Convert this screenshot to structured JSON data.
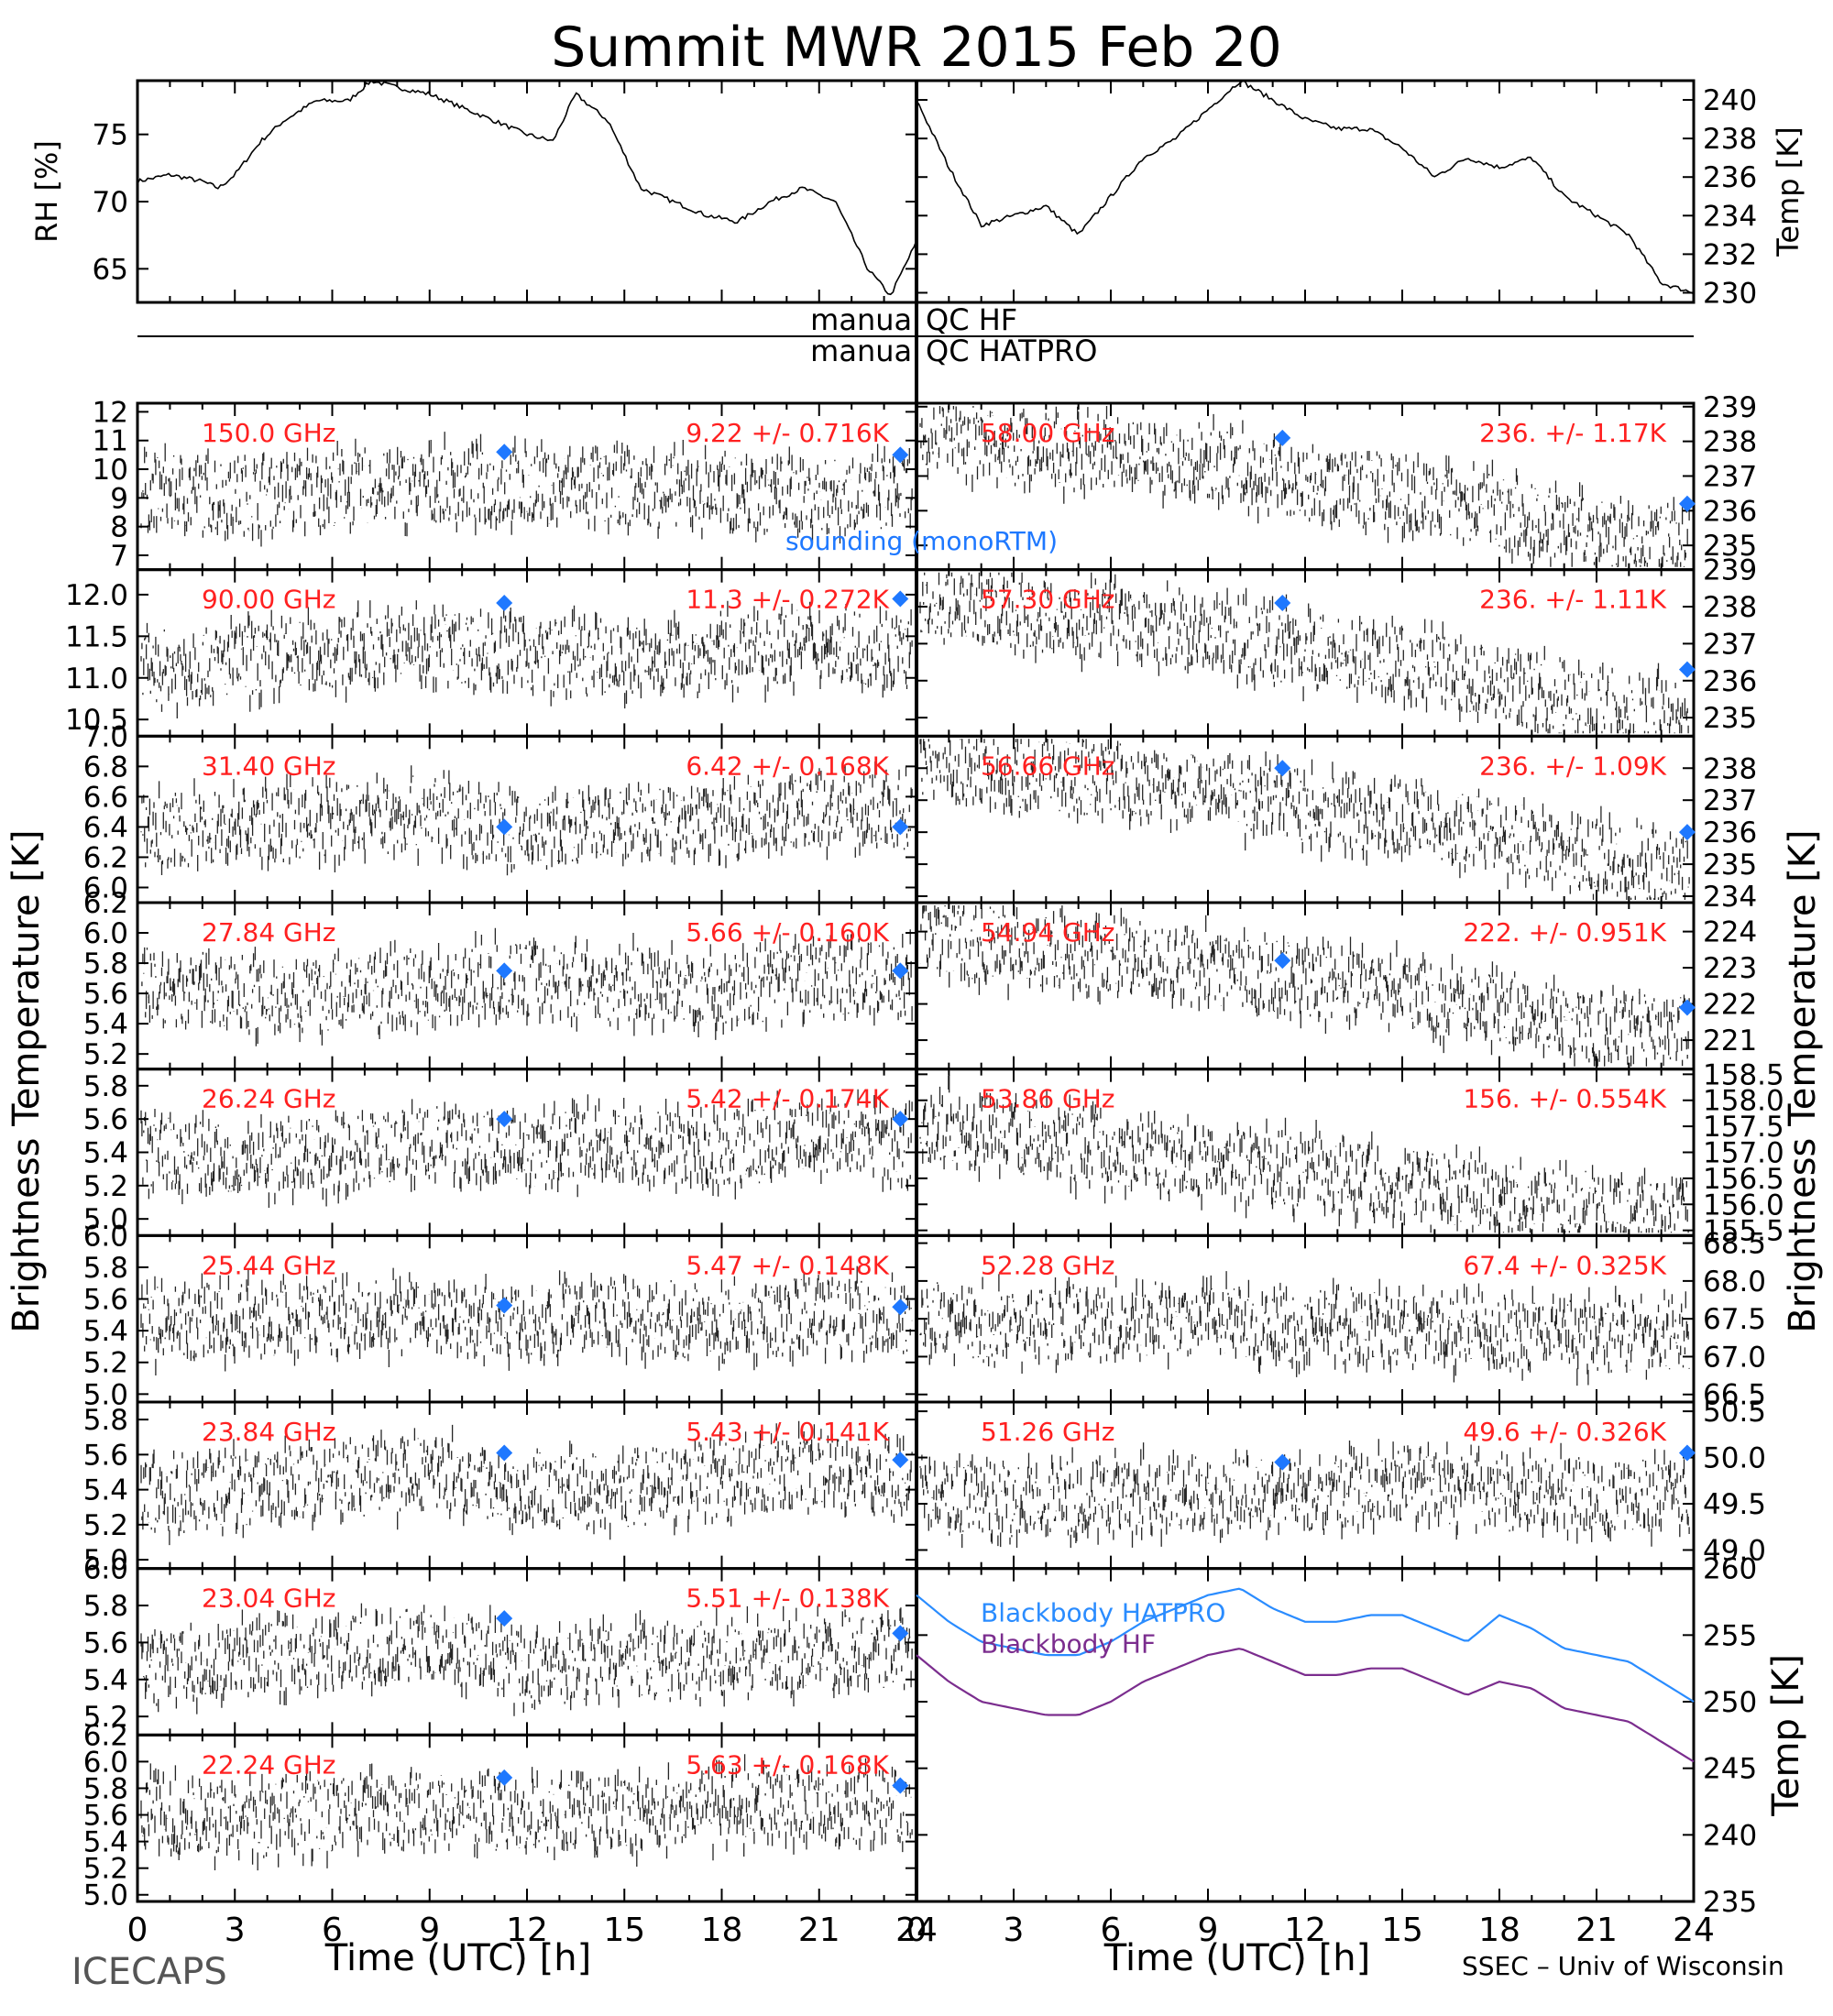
{
  "title": "Summit MWR 2015 Feb 20",
  "footer_left": "ICECAPS",
  "footer_right": "SSEC – Univ of Wisconsin",
  "xlabel": "Time (UTC) [h]",
  "left_ylabel": "Brightness Temperature [K]",
  "right_ylabel": "Brightness Temperature [K]",
  "qc_labels": [
    "manual QC HF",
    "manual QC HATPRO"
  ],
  "sounding_label": "sounding (monoRTM)",
  "colors": {
    "channel_label": "#ff2020",
    "sounding_marker": "#1e78ff",
    "bb_hatpro": "#2a8cff",
    "bb_hf": "#7b2d8e",
    "trace": "#000000"
  },
  "chart_data": [
    {
      "type": "line",
      "id": "rh",
      "ylabel": "RH [%]",
      "xlim": [
        0,
        24
      ],
      "ylim": [
        62.5,
        79
      ],
      "yticks": [
        "65",
        "70",
        "75"
      ],
      "x": [
        0,
        1,
        2,
        2.5,
        3,
        3.8,
        4.5,
        5.5,
        6.5,
        7.2,
        8,
        9,
        10,
        11,
        12,
        12.8,
        13.5,
        14.5,
        15.5,
        16.5,
        17.5,
        18.5,
        19.5,
        20.5,
        21.5,
        22.5,
        23.2,
        24
      ],
      "values": [
        71.5,
        72,
        71.5,
        71,
        72,
        74.5,
        76,
        77.5,
        77.5,
        79,
        78.5,
        78,
        77,
        76,
        75,
        74.5,
        78,
        76,
        71,
        70,
        69,
        68.5,
        70,
        71,
        70,
        65,
        63,
        67
      ]
    },
    {
      "type": "line",
      "id": "temp",
      "ylabel": "Temp [K]",
      "xlim": [
        0,
        24
      ],
      "ylim": [
        229.5,
        241
      ],
      "yticks": [
        "230",
        "232",
        "234",
        "236",
        "238",
        "240"
      ],
      "x": [
        0,
        1,
        2,
        3,
        4,
        5,
        6,
        7,
        8,
        9,
        10,
        11,
        12,
        13,
        14,
        15,
        16,
        17,
        18,
        19,
        20,
        21,
        22,
        23,
        24
      ],
      "values": [
        240,
        236.5,
        233.5,
        234,
        234.5,
        233,
        235,
        237,
        238,
        239.5,
        241,
        240,
        239,
        238.5,
        238.5,
        237.5,
        236,
        237,
        236.5,
        237,
        235,
        234,
        233,
        230.5,
        230
      ]
    },
    {
      "type": "scatter",
      "freq": "150.0 GHz",
      "stats": "9.22 +/- 0.716K",
      "ylim": [
        6.5,
        12.3
      ],
      "yticks": [
        "7",
        "8",
        "9",
        "10",
        "11",
        "12"
      ],
      "x": [
        0,
        3,
        6,
        9,
        12,
        15,
        18,
        21,
        24
      ],
      "values": [
        9.2,
        9.1,
        9.3,
        9.4,
        9.4,
        9.3,
        9.2,
        9.1,
        9.2
      ],
      "sounding": {
        "x": [
          11.3,
          23.5
        ],
        "values": [
          10.6,
          10.5
        ]
      }
    },
    {
      "type": "scatter",
      "freq": "90.00 GHz",
      "stats": "11.3 +/- 0.272K",
      "ylim": [
        10.3,
        12.3
      ],
      "yticks": [
        "10.5",
        "11.0",
        "11.5",
        "12.0"
      ],
      "x": [
        0,
        3,
        6,
        9,
        12,
        15,
        18,
        21,
        24
      ],
      "values": [
        11.1,
        11.2,
        11.3,
        11.4,
        11.3,
        11.2,
        11.3,
        11.4,
        11.3
      ],
      "sounding": {
        "x": [
          11.3,
          23.5
        ],
        "values": [
          11.9,
          11.95
        ]
      }
    },
    {
      "type": "scatter",
      "freq": "31.40 GHz",
      "stats": "6.42 +/- 0.168K",
      "ylim": [
        5.9,
        7.0
      ],
      "yticks": [
        "6.0",
        "6.2",
        "6.4",
        "6.6",
        "6.8",
        "7.0"
      ],
      "x": [
        0,
        3,
        6,
        9,
        12,
        15,
        18,
        21,
        24
      ],
      "values": [
        6.35,
        6.4,
        6.45,
        6.5,
        6.35,
        6.4,
        6.45,
        6.5,
        6.5
      ],
      "sounding": {
        "x": [
          11.3,
          23.5
        ],
        "values": [
          6.4,
          6.4
        ]
      }
    },
    {
      "type": "scatter",
      "freq": "27.84 GHz",
      "stats": "5.66 +/- 0.160K",
      "ylim": [
        5.1,
        6.2
      ],
      "yticks": [
        "5.2",
        "5.4",
        "5.6",
        "5.8",
        "6.0",
        "6.2"
      ],
      "x": [
        0,
        3,
        6,
        9,
        12,
        15,
        18,
        21,
        24
      ],
      "values": [
        5.65,
        5.6,
        5.6,
        5.65,
        5.7,
        5.65,
        5.6,
        5.7,
        5.7
      ],
      "sounding": {
        "x": [
          11.3,
          23.5
        ],
        "values": [
          5.75,
          5.75
        ]
      }
    },
    {
      "type": "scatter",
      "freq": "26.24 GHz",
      "stats": "5.42 +/- 0.174K",
      "ylim": [
        4.9,
        5.9
      ],
      "yticks": [
        "5.0",
        "5.2",
        "5.4",
        "5.6",
        "5.8"
      ],
      "x": [
        0,
        3,
        6,
        9,
        12,
        15,
        18,
        21,
        24
      ],
      "values": [
        5.4,
        5.35,
        5.4,
        5.45,
        5.4,
        5.45,
        5.4,
        5.5,
        5.45
      ],
      "sounding": {
        "x": [
          11.3,
          23.5
        ],
        "values": [
          5.6,
          5.6
        ]
      }
    },
    {
      "type": "scatter",
      "freq": "25.44 GHz",
      "stats": "5.47 +/- 0.148K",
      "ylim": [
        4.95,
        6.0
      ],
      "yticks": [
        "5.0",
        "5.2",
        "5.4",
        "5.6",
        "5.8",
        "6.0"
      ],
      "x": [
        0,
        3,
        6,
        9,
        12,
        15,
        18,
        21,
        24
      ],
      "values": [
        5.45,
        5.45,
        5.5,
        5.5,
        5.45,
        5.5,
        5.45,
        5.5,
        5.5
      ],
      "sounding": {
        "x": [
          11.3,
          23.5
        ],
        "values": [
          5.56,
          5.55
        ]
      }
    },
    {
      "type": "scatter",
      "freq": "23.84 GHz",
      "stats": "5.43 +/- 0.141K",
      "ylim": [
        4.95,
        5.9
      ],
      "yticks": [
        "5.0",
        "5.2",
        "5.4",
        "5.6",
        "5.8"
      ],
      "x": [
        0,
        3,
        6,
        9,
        12,
        15,
        18,
        21,
        24
      ],
      "values": [
        5.35,
        5.4,
        5.45,
        5.5,
        5.4,
        5.4,
        5.45,
        5.5,
        5.45
      ],
      "sounding": {
        "x": [
          11.3,
          23.5
        ],
        "values": [
          5.61,
          5.57
        ]
      }
    },
    {
      "type": "scatter",
      "freq": "23.04 GHz",
      "stats": "5.51 +/- 0.138K",
      "ylim": [
        5.1,
        6.0
      ],
      "yticks": [
        "5.2",
        "5.4",
        "5.6",
        "5.8",
        "6.0"
      ],
      "x": [
        0,
        3,
        6,
        9,
        12,
        15,
        18,
        21,
        24
      ],
      "values": [
        5.45,
        5.5,
        5.55,
        5.6,
        5.45,
        5.5,
        5.5,
        5.55,
        5.55
      ],
      "sounding": {
        "x": [
          11.3,
          23.5
        ],
        "values": [
          5.73,
          5.65
        ]
      }
    },
    {
      "type": "scatter",
      "freq": "22.24 GHz",
      "stats": "5.63 +/- 0.168K",
      "ylim": [
        4.95,
        6.2
      ],
      "yticks": [
        "5.0",
        "5.2",
        "5.4",
        "5.6",
        "5.8",
        "6.0",
        "6.2"
      ],
      "x": [
        0,
        3,
        6,
        9,
        12,
        15,
        18,
        21,
        24
      ],
      "values": [
        5.6,
        5.55,
        5.6,
        5.65,
        5.6,
        5.6,
        5.65,
        5.7,
        5.65
      ],
      "sounding": {
        "x": [
          11.3,
          23.5
        ],
        "values": [
          5.88,
          5.82
        ]
      }
    },
    {
      "type": "scatter",
      "freq": "58.00 GHz",
      "stats": "236. +/- 1.17K",
      "ylim": [
        234.3,
        239.1
      ],
      "yticks": [
        "235",
        "236",
        "237",
        "238",
        "239"
      ],
      "x": [
        0,
        3,
        6,
        9,
        12,
        15,
        18,
        21,
        24
      ],
      "values": [
        238.3,
        237.8,
        237.6,
        237.4,
        236.8,
        236.5,
        236,
        235.3,
        235
      ],
      "sounding": {
        "x": [
          11.3,
          23.8
        ],
        "values": [
          238.1,
          236.2
        ]
      }
    },
    {
      "type": "scatter",
      "freq": "57.30 GHz",
      "stats": "236. +/- 1.11K",
      "ylim": [
        234.5,
        239.0
      ],
      "yticks": [
        "235",
        "236",
        "237",
        "238",
        "239"
      ],
      "x": [
        0,
        3,
        6,
        9,
        12,
        15,
        18,
        21,
        24
      ],
      "values": [
        238.2,
        237.8,
        237.6,
        237.3,
        236.8,
        236.5,
        236,
        235.3,
        235
      ],
      "sounding": {
        "x": [
          11.3,
          23.8
        ],
        "values": [
          238.1,
          236.3
        ]
      }
    },
    {
      "type": "scatter",
      "freq": "56.66 GHz",
      "stats": "236. +/- 1.09K",
      "ylim": [
        233.8,
        239.0
      ],
      "yticks": [
        "234",
        "235",
        "236",
        "237",
        "238"
      ],
      "x": [
        0,
        3,
        6,
        9,
        12,
        15,
        18,
        21,
        24
      ],
      "values": [
        238.3,
        237.8,
        237.6,
        237.3,
        236.7,
        236.4,
        235.9,
        235.2,
        234.8
      ],
      "sounding": {
        "x": [
          11.3,
          23.8
        ],
        "values": [
          238.0,
          236.0
        ]
      }
    },
    {
      "type": "scatter",
      "freq": "54.94 GHz",
      "stats": "222. +/- 0.951K",
      "ylim": [
        220.2,
        224.8
      ],
      "yticks": [
        "221",
        "222",
        "223",
        "224"
      ],
      "x": [
        0,
        3,
        6,
        9,
        12,
        15,
        18,
        21,
        24
      ],
      "values": [
        224,
        223.5,
        223.3,
        223,
        222.6,
        222.3,
        221.9,
        221.4,
        221.2
      ],
      "sounding": {
        "x": [
          11.3,
          23.8
        ],
        "values": [
          223.2,
          221.9
        ]
      }
    },
    {
      "type": "scatter",
      "freq": "53.86 GHz",
      "stats": "156. +/- 0.554K",
      "ylim": [
        155.4,
        158.6
      ],
      "yticks": [
        "155.5",
        "156.0",
        "156.5",
        "157.0",
        "157.5",
        "158.0",
        "158.5"
      ],
      "x": [
        0,
        3,
        6,
        9,
        12,
        15,
        18,
        21,
        24
      ],
      "values": [
        157.6,
        157.3,
        157,
        156.8,
        156.6,
        156.4,
        156.1,
        155.9,
        155.8
      ],
      "sounding": {
        "x": [],
        "values": []
      }
    },
    {
      "type": "scatter",
      "freq": "52.28 GHz",
      "stats": "67.4 +/- 0.325K",
      "ylim": [
        66.4,
        68.6
      ],
      "yticks": [
        "66.5",
        "67.0",
        "67.5",
        "68.0",
        "68.5"
      ],
      "x": [
        0,
        3,
        6,
        9,
        12,
        15,
        18,
        21,
        24
      ],
      "values": [
        67.5,
        67.4,
        67.5,
        67.5,
        67.4,
        67.4,
        67.3,
        67.3,
        67.3
      ],
      "sounding": {
        "x": [],
        "values": []
      }
    },
    {
      "type": "scatter",
      "freq": "51.26 GHz",
      "stats": "49.6 +/- 0.326K",
      "ylim": [
        48.8,
        50.6
      ],
      "yticks": [
        "49.0",
        "49.5",
        "50.0",
        "50.5"
      ],
      "x": [
        0,
        3,
        6,
        9,
        12,
        15,
        18,
        21,
        24
      ],
      "values": [
        49.6,
        49.5,
        49.6,
        49.6,
        49.6,
        49.7,
        49.6,
        49.6,
        49.6
      ],
      "sounding": {
        "x": [
          11.3,
          23.8
        ],
        "values": [
          49.95,
          50.05
        ]
      }
    },
    {
      "type": "line",
      "id": "blackbody",
      "ylabel": "Temp [K]",
      "ylim": [
        235,
        260
      ],
      "yticks": [
        "235",
        "240",
        "245",
        "250",
        "255",
        "260"
      ],
      "series": [
        {
          "name": "Blackbody HATPRO",
          "x": [
            0,
            1,
            2,
            3,
            4,
            5,
            6,
            7,
            8,
            9,
            10,
            11,
            12,
            13,
            14,
            15,
            16,
            17,
            18,
            19,
            20,
            21,
            22,
            23,
            24
          ],
          "values": [
            258,
            256,
            254.5,
            254,
            253.5,
            253.5,
            254.5,
            256,
            257,
            258,
            258.5,
            257,
            256,
            256,
            256.5,
            256.5,
            255.5,
            254.5,
            256.5,
            255.5,
            254,
            253.5,
            253,
            251.5,
            250
          ]
        },
        {
          "name": "Blackbody HF",
          "x": [
            0,
            1,
            2,
            3,
            4,
            5,
            6,
            7,
            8,
            9,
            10,
            11,
            12,
            13,
            14,
            15,
            16,
            17,
            18,
            19,
            20,
            21,
            22,
            23,
            24
          ],
          "values": [
            253.5,
            251.5,
            250,
            249.5,
            249,
            249,
            250,
            251.5,
            252.5,
            253.5,
            254,
            253,
            252,
            252,
            252.5,
            252.5,
            251.5,
            250.5,
            251.5,
            251,
            249.5,
            249,
            248.5,
            247,
            245.5
          ]
        }
      ]
    }
  ],
  "xticks_bottom": [
    "0",
    "3",
    "6",
    "9",
    "12",
    "15",
    "18",
    "21",
    "24"
  ]
}
